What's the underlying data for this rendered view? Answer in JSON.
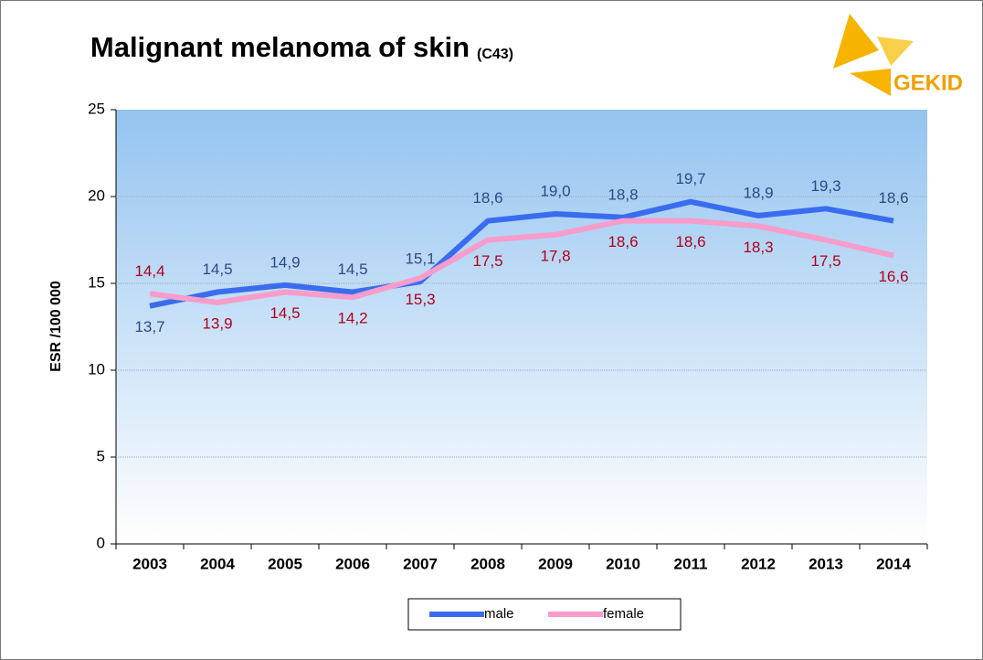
{
  "chart_data": {
    "type": "line",
    "title": "Malignant melanoma of skin",
    "subtitle": "(C43)",
    "logo_text": "GEKID",
    "ylabel": "ESR /100 000",
    "categories": [
      "2003",
      "2004",
      "2005",
      "2006",
      "2007",
      "2008",
      "2009",
      "2010",
      "2011",
      "2012",
      "2013",
      "2014"
    ],
    "series": [
      {
        "name": "male",
        "color": "#3a6cf0",
        "values": [
          13.7,
          14.5,
          14.9,
          14.5,
          15.1,
          18.6,
          19.0,
          18.8,
          19.7,
          18.9,
          19.3,
          18.6
        ],
        "value_labels": [
          "13,7",
          "14,5",
          "14,9",
          "14,5",
          "15,1",
          "18,6",
          "19,0",
          "18,8",
          "19,7",
          "18,9",
          "19,3",
          "18,6"
        ]
      },
      {
        "name": "female",
        "color": "#f79ccb",
        "values": [
          14.4,
          13.9,
          14.5,
          14.2,
          15.3,
          17.5,
          17.8,
          18.6,
          18.6,
          18.3,
          17.5,
          16.6
        ],
        "value_labels": [
          "14,4",
          "13,9",
          "14,5",
          "14,2",
          "15,3",
          "17,5",
          "17,8",
          "18,6",
          "18,6",
          "18,3",
          "17,5",
          "16,6"
        ]
      }
    ],
    "ylim": [
      0,
      25
    ],
    "yticks": [
      0,
      5,
      10,
      15,
      20,
      25
    ],
    "grid": true,
    "legend": "bottom"
  }
}
